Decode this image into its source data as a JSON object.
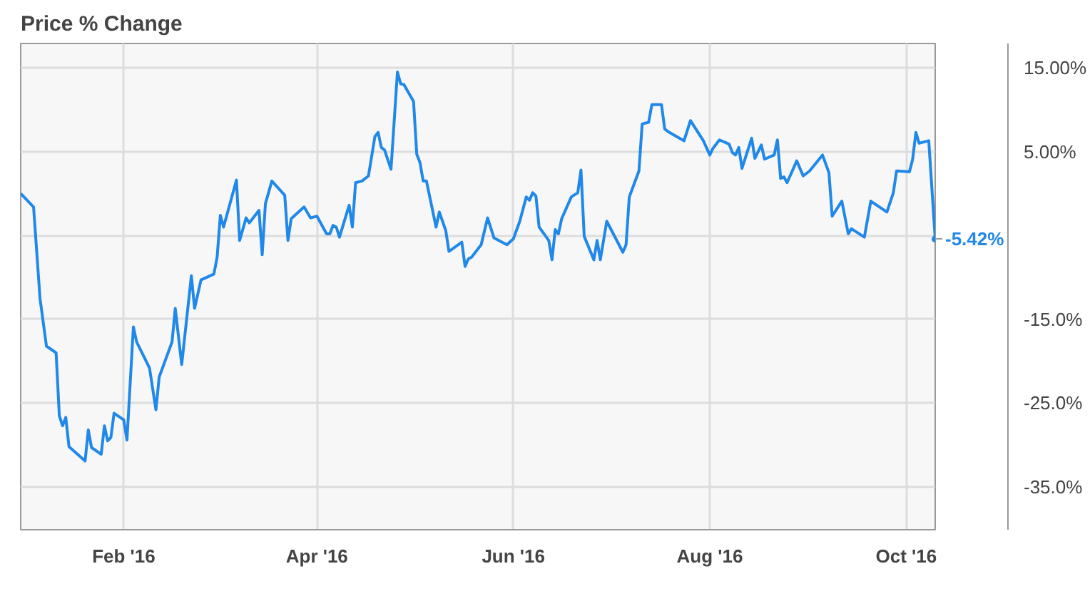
{
  "chart_data": {
    "type": "line",
    "title": "Price % Change",
    "x": [
      "2015-12-31",
      "2016-01-04",
      "2016-01-06",
      "2016-01-08",
      "2016-01-11",
      "2016-01-12",
      "2016-01-13",
      "2016-01-14",
      "2016-01-15",
      "2016-01-20",
      "2016-01-21",
      "2016-01-22",
      "2016-01-25",
      "2016-01-26",
      "2016-01-27",
      "2016-01-28",
      "2016-01-29",
      "2016-02-01",
      "2016-02-02",
      "2016-02-04",
      "2016-02-05",
      "2016-02-09",
      "2016-02-11",
      "2016-02-12",
      "2016-02-16",
      "2016-02-17",
      "2016-02-19",
      "2016-02-22",
      "2016-02-23",
      "2016-02-25",
      "2016-02-29",
      "2016-03-01",
      "2016-03-02",
      "2016-03-03",
      "2016-03-07",
      "2016-03-08",
      "2016-03-10",
      "2016-03-11",
      "2016-03-14",
      "2016-03-15",
      "2016-03-16",
      "2016-03-18",
      "2016-03-22",
      "2016-03-23",
      "2016-03-24",
      "2016-03-28",
      "2016-03-30",
      "2016-04-01",
      "2016-04-04",
      "2016-04-05",
      "2016-04-06",
      "2016-04-07",
      "2016-04-08",
      "2016-04-11",
      "2016-04-12",
      "2016-04-13",
      "2016-04-15",
      "2016-04-17",
      "2016-04-19",
      "2016-04-20",
      "2016-04-21",
      "2016-04-22",
      "2016-04-24",
      "2016-04-26",
      "2016-04-27",
      "2016-04-28",
      "2016-05-01",
      "2016-05-02",
      "2016-05-03",
      "2016-05-04",
      "2016-05-05",
      "2016-05-08",
      "2016-05-09",
      "2016-05-11",
      "2016-05-12",
      "2016-05-16",
      "2016-05-17",
      "2016-05-18",
      "2016-05-19",
      "2016-05-22",
      "2016-05-24",
      "2016-05-26",
      "2016-05-30",
      "2016-06-01",
      "2016-06-03",
      "2016-06-05",
      "2016-06-06",
      "2016-06-07",
      "2016-06-08",
      "2016-06-09",
      "2016-06-12",
      "2016-06-13",
      "2016-06-14",
      "2016-06-15",
      "2016-06-16",
      "2016-06-19",
      "2016-06-21",
      "2016-06-22",
      "2016-06-23",
      "2016-06-26",
      "2016-06-27",
      "2016-06-28",
      "2016-06-30",
      "2016-07-05",
      "2016-07-06",
      "2016-07-07",
      "2016-07-10",
      "2016-07-11",
      "2016-07-13",
      "2016-07-14",
      "2016-07-17",
      "2016-07-18",
      "2016-07-19",
      "2016-07-24",
      "2016-07-26",
      "2016-07-30",
      "2016-08-01",
      "2016-08-02",
      "2016-08-04",
      "2016-08-07",
      "2016-08-08",
      "2016-08-09",
      "2016-08-10",
      "2016-08-11",
      "2016-08-14",
      "2016-08-15",
      "2016-08-17",
      "2016-08-18",
      "2016-08-21",
      "2016-08-22",
      "2016-08-23",
      "2016-08-24",
      "2016-08-25",
      "2016-08-28",
      "2016-08-30",
      "2016-09-01",
      "2016-09-05",
      "2016-09-07",
      "2016-09-08",
      "2016-09-11",
      "2016-09-13",
      "2016-09-14",
      "2016-09-18",
      "2016-09-20",
      "2016-09-25",
      "2016-09-27",
      "2016-09-28",
      "2016-10-02",
      "2016-10-03",
      "2016-10-04",
      "2016-10-05",
      "2016-10-08",
      "2016-10-10"
    ],
    "series": [
      {
        "color": "#2088e8",
        "values": [
          0.0,
          -1.6,
          -12.5,
          -18.2,
          -19.0,
          -26.5,
          -27.7,
          -26.7,
          -30.2,
          -31.9,
          -28.2,
          -30.3,
          -31.1,
          -27.7,
          -29.5,
          -29.1,
          -26.2,
          -27.0,
          -29.4,
          -15.9,
          -17.7,
          -20.8,
          -25.8,
          -21.9,
          -17.7,
          -13.7,
          -20.4,
          -9.8,
          -13.7,
          -10.3,
          -9.6,
          -7.6,
          -2.6,
          -4.0,
          1.6,
          -5.6,
          -2.9,
          -3.5,
          -2.0,
          -7.3,
          -1.2,
          1.5,
          -0.2,
          -5.6,
          -3.0,
          -1.6,
          -2.9,
          -2.7,
          -4.8,
          -4.8,
          -3.8,
          -4.0,
          -5.2,
          -1.4,
          -4.0,
          1.3,
          1.5,
          2.1,
          6.8,
          7.3,
          5.5,
          5.2,
          2.9,
          14.5,
          13.1,
          13.0,
          11.0,
          4.7,
          3.7,
          1.5,
          1.5,
          -4.0,
          -2.2,
          -4.4,
          -6.9,
          -5.8,
          -8.7,
          -7.8,
          -7.6,
          -6.1,
          -2.9,
          -5.3,
          -6.1,
          -5.4,
          -3.3,
          -0.4,
          -0.8,
          0.1,
          -0.3,
          -4.0,
          -5.6,
          -7.9,
          -4.3,
          -4.8,
          -3.0,
          -0.4,
          0.1,
          2.8,
          -5.1,
          -7.9,
          -5.6,
          -7.9,
          -3.3,
          -7.0,
          -6.1,
          -0.4,
          2.7,
          8.3,
          8.5,
          10.6,
          10.6,
          7.7,
          7.4,
          6.3,
          8.7,
          6.3,
          4.6,
          5.4,
          6.4,
          5.9,
          4.9,
          4.6,
          5.5,
          3.0,
          6.6,
          4.2,
          5.8,
          4.1,
          4.6,
          6.4,
          1.8,
          2.0,
          1.3,
          3.9,
          2.1,
          2.7,
          4.6,
          2.5,
          -2.7,
          -0.9,
          -4.8,
          -4.2,
          -5.2,
          -0.9,
          -2.2,
          0.1,
          2.7,
          2.6,
          4.1,
          7.3,
          6.0,
          6.3,
          -5.42
        ]
      }
    ],
    "xlim": [
      "2015-12-31",
      "2016-10-10"
    ],
    "xticks": [
      {
        "value": "2016-02-01",
        "label": "Feb '16"
      },
      {
        "value": "2016-04-01",
        "label": "Apr '16"
      },
      {
        "value": "2016-06-01",
        "label": "Jun '16"
      },
      {
        "value": "2016-08-01",
        "label": "Aug '16"
      },
      {
        "value": "2016-10-01",
        "label": "Oct '16"
      }
    ],
    "ylim": [
      -40.1,
      17.9
    ],
    "yticks": [
      {
        "value": 15,
        "label": "15.00%"
      },
      {
        "value": 5,
        "label": "5.00%"
      },
      {
        "value": -5,
        "label": null
      },
      {
        "value": -15,
        "label": "-15.0%"
      },
      {
        "value": -25,
        "label": "-25.0%"
      },
      {
        "value": -35,
        "label": "-35.0%"
      }
    ],
    "annotations": [
      {
        "text": "-5.42%",
        "x": "2016-10-10",
        "y": -5.42
      }
    ],
    "grid": true,
    "marker": "none",
    "line_style": "solid"
  }
}
